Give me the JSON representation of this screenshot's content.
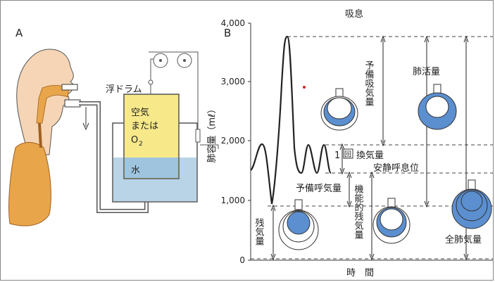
{
  "panel_a": {
    "label": "A",
    "float_drum_label": "浮ドラム",
    "air_or_o2_line1": "空気",
    "air_or_o2_line2": "または",
    "air_or_o2_line3": "O",
    "o2_subscript": "2",
    "water_label": "水"
  },
  "panel_b": {
    "label": "B",
    "top_label": "吸息",
    "bottom_label": "時　間",
    "y_axis_label": "肺容量（mℓ）",
    "y_ticks": [
      "4,000",
      "3,000",
      "2,000",
      "1,000",
      "0"
    ],
    "labels": {
      "irv": "予備吸気量",
      "vital": "肺活量",
      "tidal_num": "1",
      "tidal_kai": "回",
      "tidal": "換気量",
      "rest_position": "安静呼息位",
      "erv": "予備呼気量",
      "frc": "機能的残気量",
      "residual": "残気量",
      "tlc": "全肺気量"
    }
  },
  "colors": {
    "air_box": "#f7e98a",
    "water": "#b8d4e6",
    "lung": "#e8a54a",
    "face": "#f5d5b5",
    "lung_blue": "#5b8fd0"
  }
}
